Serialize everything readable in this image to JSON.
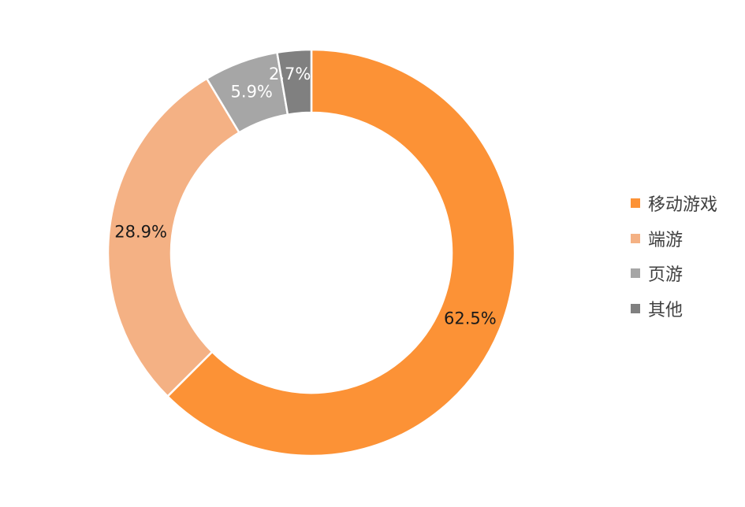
{
  "chart_data": {
    "type": "pie",
    "donut": true,
    "categories": [
      "移动游戏",
      "端游",
      "页游",
      "其他"
    ],
    "values": [
      62.5,
      28.9,
      5.9,
      2.7
    ],
    "labels": [
      "62.5%",
      "28.9%",
      "5.9%",
      "2.7%"
    ],
    "colors": [
      "#fc9236",
      "#f4b184",
      "#a6a6a6",
      "#808080"
    ],
    "label_colors": [
      "#1a1a1a",
      "#1a1a1a",
      "#ffffff",
      "#ffffff"
    ],
    "legend_placement": "right",
    "start": "top",
    "direction": "clockwise"
  }
}
